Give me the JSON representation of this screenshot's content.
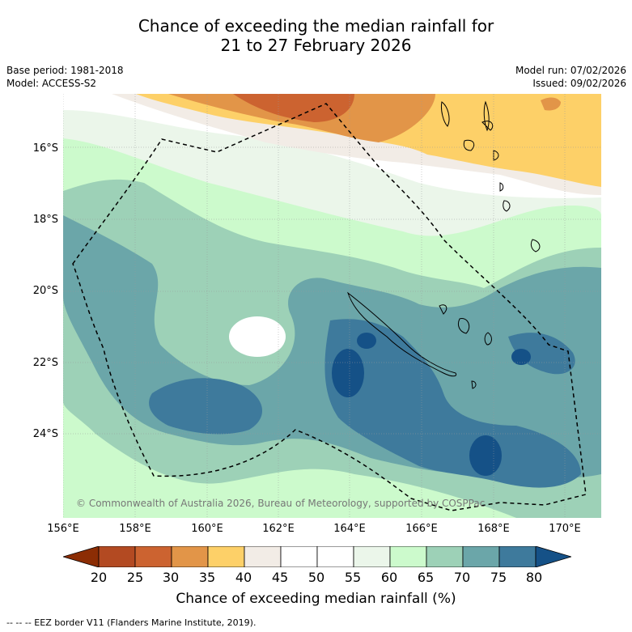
{
  "title": {
    "line1": "Chance of exceeding the median rainfall for",
    "line2": "21 to 27 February 2026"
  },
  "meta": {
    "base_period": "Base period: 1981-2018",
    "model": "Model: ACCESS-S2",
    "model_run": "Model run: 07/02/2026",
    "issued": "Issued: 09/02/2026"
  },
  "map": {
    "copyright": "© Commonwealth of Australia 2026, Bureau of Meteorology, supported by COSPPac",
    "lat_labels": [
      "16°S",
      "18°S",
      "20°S",
      "22°S",
      "24°S"
    ],
    "lon_labels": [
      "156°E",
      "158°E",
      "160°E",
      "162°E",
      "164°E",
      "166°E",
      "168°E",
      "170°E"
    ],
    "background_color": "#f7fcf5"
  },
  "colorbar": {
    "title": "Chance of exceeding median rainfall (%)",
    "ticks": [
      "20",
      "25",
      "30",
      "35",
      "40",
      "45",
      "50",
      "55",
      "60",
      "65",
      "70",
      "75",
      "80"
    ],
    "colors": [
      "#8c2d04",
      "#b34a22",
      "#cc6330",
      "#e29548",
      "#fdd068",
      "#f2ece6",
      "#ffffff",
      "#ffffff",
      "#ebf6ea",
      "#ccfacc",
      "#9dd1b7",
      "#6ba6a9",
      "#3e7a9c",
      "#155187"
    ]
  },
  "footnote": "-- -- -- EEZ border V11 (Flanders Marine Institute, 2019)."
}
